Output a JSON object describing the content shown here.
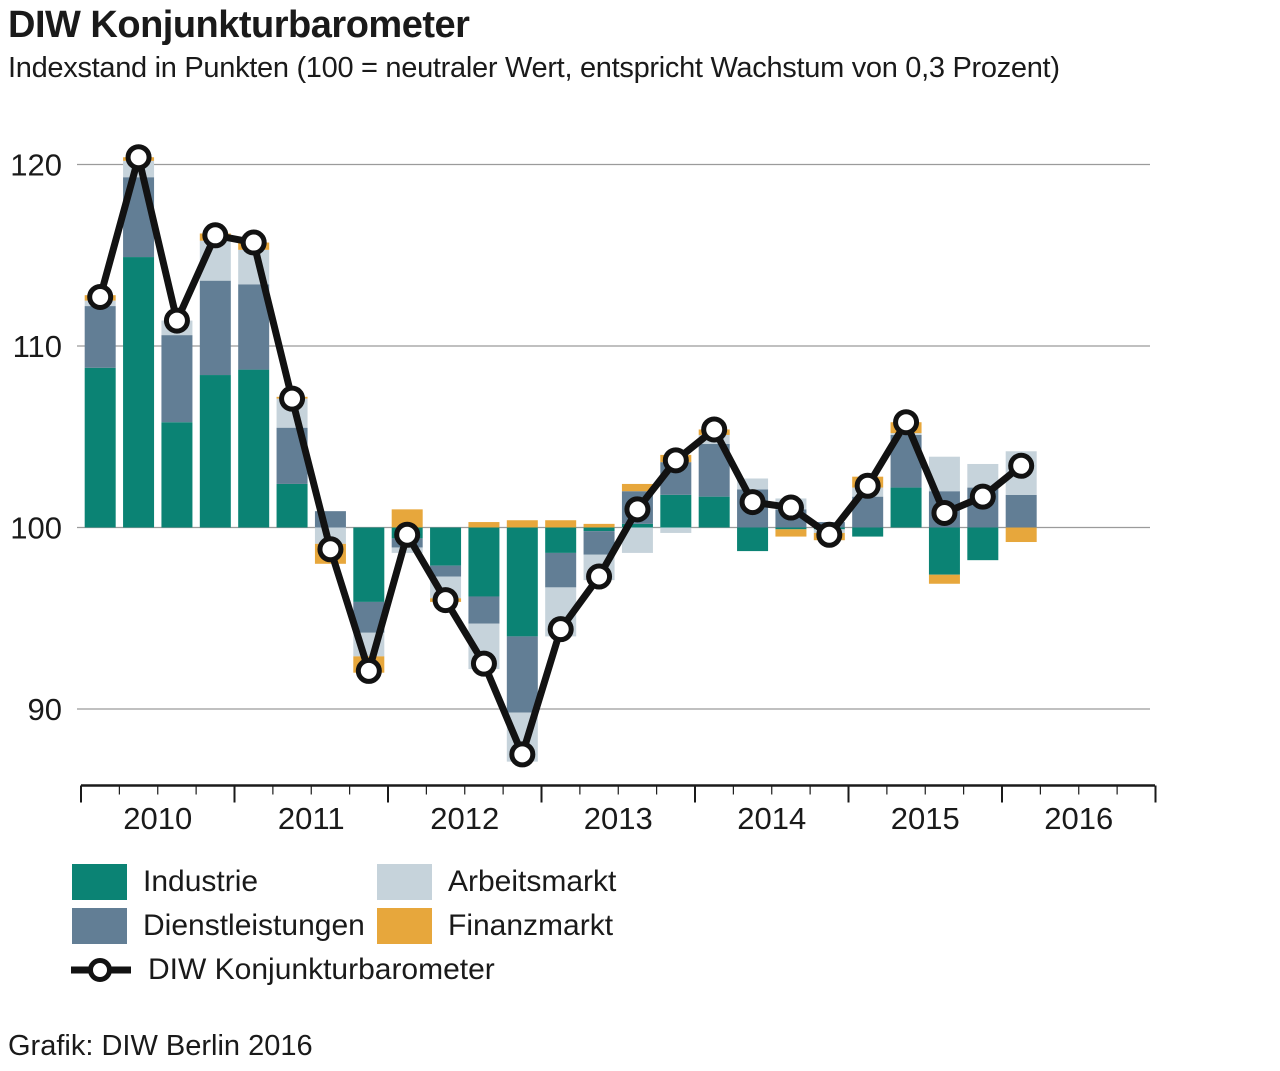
{
  "header": {
    "title": "DIW Konjunkturbarometer",
    "subtitle": "Indexstand in Punkten (100 = neutraler Wert, entspricht Wachstum von 0,3 Prozent)"
  },
  "footer": {
    "credit": "Grafik: DIW Berlin 2016"
  },
  "colors": {
    "industrie": "#0B8374",
    "dienstleistungen": "#627E95",
    "arbeitsmarkt": "#C6D3DB",
    "finanzmarkt": "#E7A73C",
    "barometer_line": "#121212",
    "marker_fill": "#FFFFFF",
    "grid": "#9B9B9B",
    "axis": "#1A1A1A"
  },
  "chart_data": {
    "type": "bar",
    "subtype": "stacked-contribution-bars-with-line",
    "title": "DIW Konjunkturbarometer",
    "subtitle": "Indexstand in Punkten (100 = neutraler Wert, entspricht Wachstum von 0,3 Prozent)",
    "note": "Bar segments are contributions in index points relative to the neutral baseline of 100; the line is the total barometer index.",
    "baseline": 100,
    "ylim": [
      86,
      122
    ],
    "yticks": [
      90,
      100,
      110,
      120
    ],
    "grid": "horizontal",
    "legend_position": "bottom-left",
    "xlabel": "",
    "ylabel": "",
    "year_labels": [
      "2010",
      "2011",
      "2012",
      "2013",
      "2014",
      "2015",
      "2016"
    ],
    "categories": [
      "2010 Q1",
      "2010 Q2",
      "2010 Q3",
      "2010 Q4",
      "2011 Q1",
      "2011 Q2",
      "2011 Q3",
      "2011 Q4",
      "2012 Q1",
      "2012 Q2",
      "2012 Q3",
      "2012 Q4",
      "2013 Q1",
      "2013 Q2",
      "2013 Q3",
      "2013 Q4",
      "2014 Q1",
      "2014 Q2",
      "2014 Q3",
      "2014 Q4",
      "2015 Q1",
      "2015 Q2",
      "2015 Q3",
      "2015 Q4",
      "2016 Q1"
    ],
    "series": [
      {
        "key": "industrie",
        "name": "Industrie",
        "color": "#0B8374",
        "values": [
          8.8,
          14.9,
          5.8,
          8.4,
          8.7,
          2.4,
          0.0,
          -4.1,
          -0.6,
          -2.1,
          -3.8,
          -6.0,
          -1.4,
          -0.2,
          0.2,
          1.8,
          1.7,
          -1.3,
          -0.1,
          -0.1,
          -0.5,
          2.2,
          -2.6,
          -1.8,
          0.0
        ]
      },
      {
        "key": "dienstleistungen",
        "name": "Dienstleistungen",
        "color": "#627E95",
        "values": [
          3.4,
          4.4,
          4.8,
          5.2,
          4.7,
          3.1,
          0.9,
          -1.7,
          -0.5,
          -0.6,
          -1.5,
          -4.2,
          -1.9,
          -1.3,
          1.8,
          1.8,
          2.9,
          2.1,
          1.0,
          0.3,
          1.7,
          2.9,
          2.0,
          2.2,
          1.8
        ]
      },
      {
        "key": "arbeitsmarkt",
        "name": "Arbeitsmarkt",
        "color": "#C6D3DB",
        "values": [
          0.3,
          0.9,
          0.8,
          2.2,
          1.9,
          1.6,
          -0.9,
          -1.3,
          -0.3,
          -1.2,
          -2.5,
          -2.7,
          -2.7,
          -1.4,
          -1.4,
          -0.3,
          0.5,
          0.6,
          0.6,
          -0.2,
          0.5,
          0.1,
          1.9,
          1.3,
          2.4
        ]
      },
      {
        "key": "finanzmarkt",
        "name": "Finanzmarkt",
        "color": "#E7A73C",
        "values": [
          0.3,
          0.2,
          0.0,
          0.4,
          0.4,
          0.1,
          -1.1,
          -0.9,
          1.0,
          -0.2,
          0.3,
          0.4,
          0.4,
          0.2,
          0.4,
          0.4,
          0.3,
          0.0,
          -0.4,
          -0.4,
          0.6,
          0.6,
          -0.5,
          0.0,
          -0.8
        ]
      }
    ],
    "line_series": {
      "key": "barometer",
      "name": "DIW Konjunkturbarometer",
      "color": "#121212",
      "values": [
        112.7,
        120.4,
        111.4,
        116.1,
        115.7,
        107.1,
        98.8,
        92.1,
        99.6,
        96.0,
        92.5,
        87.5,
        94.4,
        97.3,
        101.0,
        103.7,
        105.4,
        101.4,
        101.1,
        99.6,
        102.3,
        105.8,
        100.8,
        101.7,
        103.4
      ]
    }
  }
}
